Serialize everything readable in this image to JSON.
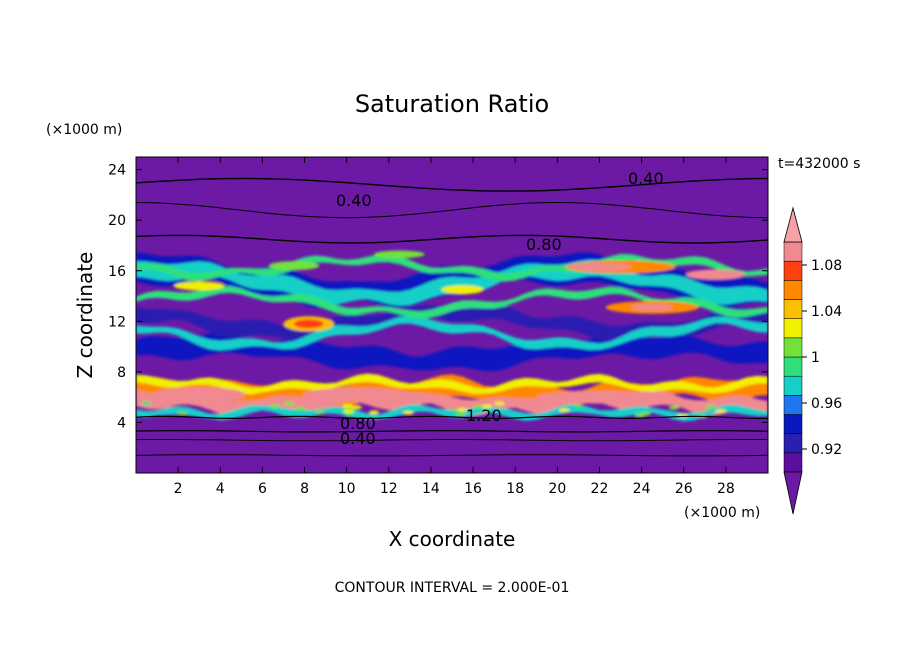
{
  "chart_data": {
    "type": "heatmap",
    "title": "Saturation Ratio",
    "xlabel": "X coordinate",
    "ylabel": "Z coordinate",
    "x_unit": "(×1000 m)",
    "y_unit": "(×1000 m)",
    "time_label": "t=432000 s",
    "footer": "CONTOUR INTERVAL = 2.000E-01",
    "xlim": [
      0,
      30
    ],
    "ylim": [
      0,
      25
    ],
    "x_ticks": [
      "2",
      "4",
      "6",
      "8",
      "10",
      "12",
      "14",
      "16",
      "18",
      "20",
      "22",
      "24",
      "26",
      "28"
    ],
    "y_ticks": [
      "4",
      "8",
      "12",
      "16",
      "20",
      "24"
    ],
    "colorbar": {
      "ticks": [
        "0.92",
        "0.96",
        "1",
        "1.04",
        "1.08"
      ],
      "range": [
        0.9,
        1.1
      ],
      "colors": [
        "#5a0fa0",
        "#2a1fb0",
        "#0a18c0",
        "#1f77f0",
        "#14d0c8",
        "#2fe07a",
        "#72e23a",
        "#f0f000",
        "#f8c000",
        "#ff8800",
        "#ff4010",
        "#f08a90"
      ],
      "under_color": "#6c1aa6",
      "over_color": "#f4a2a6"
    },
    "contour_labels": [
      "0.40",
      "0.40",
      "0.80",
      "1.20",
      "0.80",
      "0.40"
    ],
    "contour_interval": 0.2
  }
}
